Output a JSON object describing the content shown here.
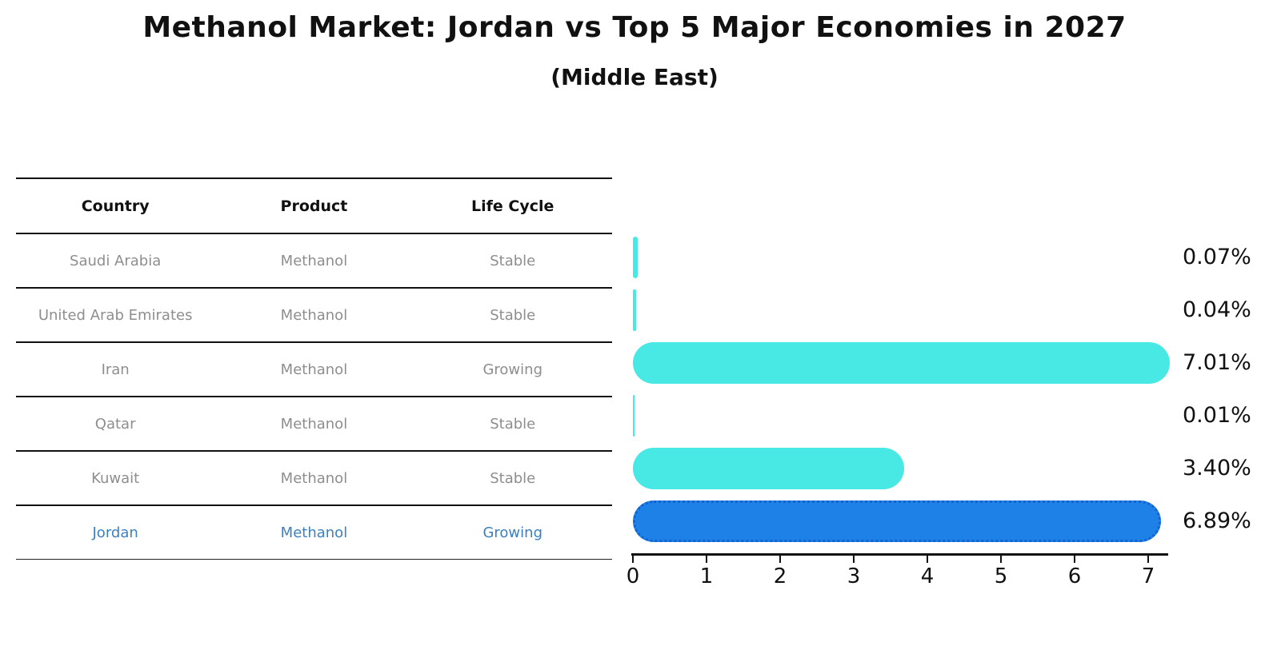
{
  "title": "Methanol Market: Jordan vs Top 5 Major Economies in 2027",
  "subtitle": "(Middle East)",
  "table": {
    "headers": [
      "Country",
      "Product",
      "Life Cycle"
    ],
    "rows": [
      {
        "country": "Saudi Arabia",
        "product": "Methanol",
        "life_cycle": "Stable",
        "highlight": false
      },
      {
        "country": "United Arab Emirates",
        "product": "Methanol",
        "life_cycle": "Stable",
        "highlight": false
      },
      {
        "country": "Iran",
        "product": "Methanol",
        "life_cycle": "Growing",
        "highlight": false
      },
      {
        "country": "Qatar",
        "product": "Methanol",
        "life_cycle": "Stable",
        "highlight": false
      },
      {
        "country": "Kuwait",
        "product": "Methanol",
        "life_cycle": "Stable",
        "highlight": false
      },
      {
        "country": "Jordan",
        "product": "Methanol",
        "life_cycle": "Growing",
        "highlight": true
      }
    ]
  },
  "chart_data": {
    "type": "bar",
    "orientation": "horizontal",
    "title": "Methanol Market: Jordan vs Top 5 Major Economies in 2027",
    "subtitle": "(Middle East)",
    "categories": [
      "Saudi Arabia",
      "United Arab Emirates",
      "Iran",
      "Qatar",
      "Kuwait",
      "Jordan"
    ],
    "values": [
      0.07,
      0.04,
      7.01,
      0.01,
      3.4,
      6.89
    ],
    "value_labels": [
      "0.07%",
      "0.04%",
      "7.01%",
      "0.01%",
      "3.40%",
      "6.89%"
    ],
    "highlight_category": "Jordan",
    "xticks": [
      0,
      1,
      2,
      3,
      4,
      5,
      6,
      7
    ],
    "xlim": [
      0,
      7.3
    ],
    "grid": false,
    "legend": "none",
    "colors": {
      "bar": "#48e8e4",
      "highlight_bar": "#1e81e8",
      "highlight_edge": "#1462ce",
      "highlight_text": "#3d80c0",
      "row_text": "#8e8e8e",
      "axis": "#111111"
    }
  }
}
